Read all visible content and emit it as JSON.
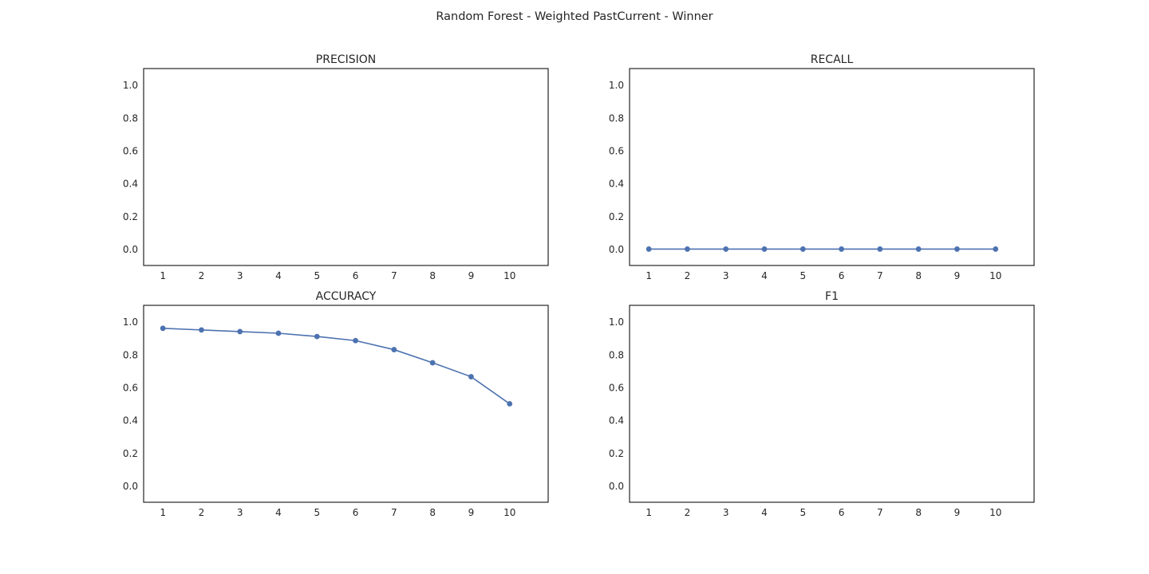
{
  "chart_data": {
    "title": "Random Forest - Weighted PastCurrent - Winner",
    "series_color": "#4c72b0",
    "charts": [
      {
        "type": "line",
        "title": "PRECISION",
        "x": [
          1,
          2,
          3,
          4,
          5,
          6,
          7,
          8,
          9,
          10
        ],
        "values": [],
        "xlim": [
          0.5,
          11
        ],
        "ylim": [
          -0.1,
          1.1
        ],
        "xticks": [
          "1",
          "2",
          "3",
          "4",
          "5",
          "6",
          "7",
          "8",
          "9",
          "10"
        ],
        "yticks": [
          "0.0",
          "0.2",
          "0.4",
          "0.6",
          "0.8",
          "1.0"
        ],
        "grid": false
      },
      {
        "type": "line",
        "title": "RECALL",
        "x": [
          1,
          2,
          3,
          4,
          5,
          6,
          7,
          8,
          9,
          10
        ],
        "values": [
          0,
          0,
          0,
          0,
          0,
          0,
          0,
          0,
          0,
          0
        ],
        "xlim": [
          0.5,
          11
        ],
        "ylim": [
          -0.1,
          1.1
        ],
        "xticks": [
          "1",
          "2",
          "3",
          "4",
          "5",
          "6",
          "7",
          "8",
          "9",
          "10"
        ],
        "yticks": [
          "0.0",
          "0.2",
          "0.4",
          "0.6",
          "0.8",
          "1.0"
        ],
        "grid": false
      },
      {
        "type": "line",
        "title": "ACCURACY",
        "x": [
          1,
          2,
          3,
          4,
          5,
          6,
          7,
          8,
          9,
          10
        ],
        "values": [
          0.96,
          0.95,
          0.94,
          0.93,
          0.91,
          0.885,
          0.83,
          0.75,
          0.665,
          0.5
        ],
        "xlim": [
          0.5,
          11
        ],
        "ylim": [
          -0.1,
          1.1
        ],
        "xticks": [
          "1",
          "2",
          "3",
          "4",
          "5",
          "6",
          "7",
          "8",
          "9",
          "10"
        ],
        "yticks": [
          "0.0",
          "0.2",
          "0.4",
          "0.6",
          "0.8",
          "1.0"
        ],
        "grid": false
      },
      {
        "type": "line",
        "title": "F1",
        "x": [
          1,
          2,
          3,
          4,
          5,
          6,
          7,
          8,
          9,
          10
        ],
        "values": [],
        "xlim": [
          0.5,
          11
        ],
        "ylim": [
          -0.1,
          1.1
        ],
        "xticks": [
          "1",
          "2",
          "3",
          "4",
          "5",
          "6",
          "7",
          "8",
          "9",
          "10"
        ],
        "yticks": [
          "0.0",
          "0.2",
          "0.4",
          "0.6",
          "0.8",
          "1.0"
        ],
        "grid": false
      }
    ]
  }
}
